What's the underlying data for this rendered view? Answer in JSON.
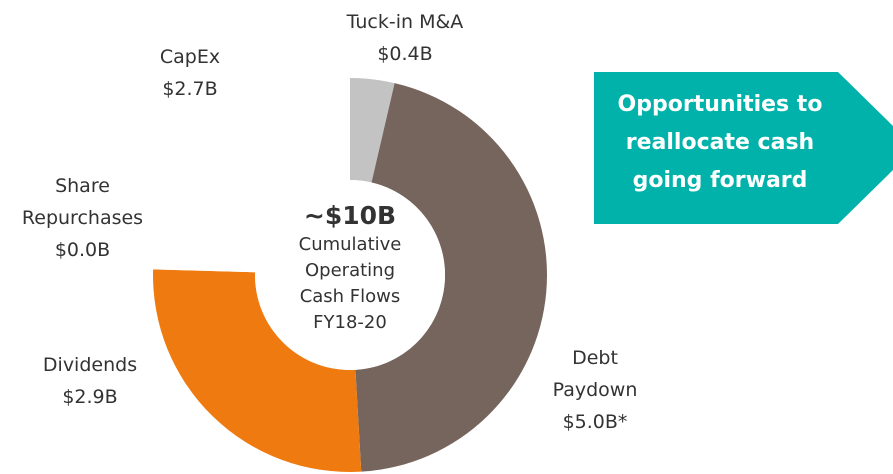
{
  "chart_data": {
    "type": "pie",
    "donut": true,
    "categories": [
      "Tuck-in M&A",
      "Debt Paydown",
      "Dividends",
      "Share Repurchases",
      "CapEx"
    ],
    "values": [
      0.4,
      5.0,
      2.9,
      0.0,
      2.7
    ],
    "value_labels": [
      "$0.4B",
      "$5.0B*",
      "$2.9B",
      "$0.0B",
      "$2.7B"
    ],
    "colors": [
      "#c3c3c3",
      "#76655c",
      "#ef7b10",
      "#0b4a99",
      "#ffffff"
    ],
    "center_label": {
      "title": "~$10B",
      "text": "Cumulative Operating Cash Flows FY18-20"
    },
    "annotation": {
      "text": "Opportunities to reallocate cash going forward",
      "color": "#00b2a9"
    }
  }
}
